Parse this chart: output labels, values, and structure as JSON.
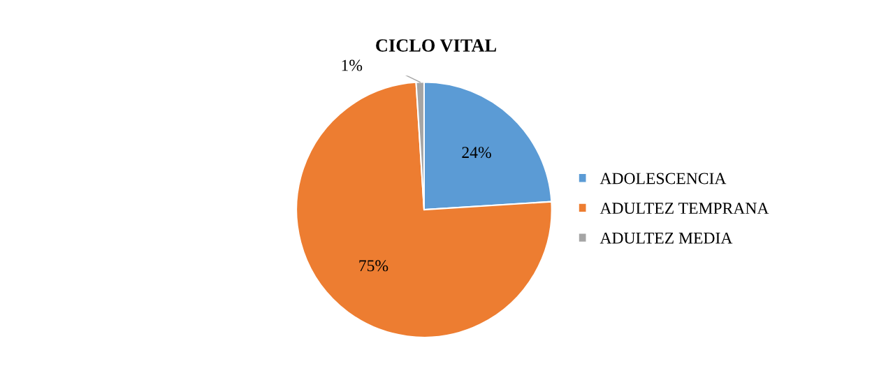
{
  "chart_data": {
    "type": "pie",
    "title": "CICLO VITAL",
    "categories": [
      "ADOLESCENCIA",
      "ADULTEZ TEMPRANA",
      "ADULTEZ MEDIA"
    ],
    "values": [
      24,
      75,
      1
    ],
    "colors": [
      "#5b9bd5",
      "#ed7d31",
      "#a5a5a5"
    ],
    "value_labels": [
      "24%",
      "75%",
      "1%"
    ],
    "legend": "right"
  }
}
